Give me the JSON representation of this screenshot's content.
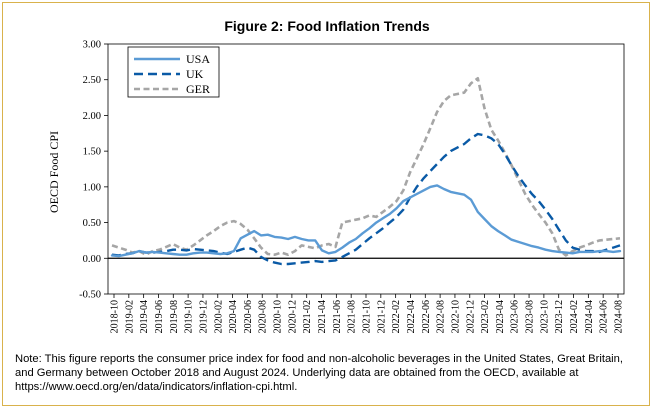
{
  "chart_data": {
    "type": "line",
    "title": "Figure 2: Food Inflation Trends",
    "ylabel": "OECD Food CPI",
    "xlabel": "",
    "ylim": [
      -0.5,
      3.0
    ],
    "yticks": [
      "3.00",
      "2.50",
      "2.00",
      "1.50",
      "1.00",
      "0.50",
      "0.00",
      "-0.50"
    ],
    "ytick_values": [
      3.0,
      2.5,
      2.0,
      1.5,
      1.0,
      0.5,
      0.0,
      -0.5
    ],
    "x_tick_labels": [
      "2018-10",
      "2019-02",
      "2019-04",
      "2019-06",
      "2019-08",
      "2019-10",
      "2019-12",
      "2020-02",
      "2020-04",
      "2020-06",
      "2020-08",
      "2020-10",
      "2020-12",
      "2021-02",
      "2021-04",
      "2021-06",
      "2021-08",
      "2021-10",
      "2021-12",
      "2022-02",
      "2022-04",
      "2022-06",
      "2022-08",
      "2022-10",
      "2022-12",
      "2023-02",
      "2023-04",
      "2023-06",
      "2023-08",
      "2023-10",
      "2023-12",
      "2024-02",
      "2024-04",
      "2024-06",
      "2024-08"
    ],
    "grid": false,
    "legend_position": "top-left",
    "series": [
      {
        "name": "USA",
        "color": "#5b9bd5",
        "style": "solid",
        "values": [
          0.04,
          0.03,
          0.05,
          0.07,
          0.1,
          0.08,
          0.09,
          0.08,
          0.07,
          0.06,
          0.05,
          0.05,
          0.07,
          0.08,
          0.08,
          0.07,
          0.06,
          0.07,
          0.1,
          0.28,
          0.33,
          0.38,
          0.32,
          0.33,
          0.3,
          0.29,
          0.27,
          0.3,
          0.27,
          0.25,
          0.25,
          0.11,
          0.07,
          0.09,
          0.15,
          0.22,
          0.27,
          0.35,
          0.42,
          0.5,
          0.56,
          0.62,
          0.7,
          0.8,
          0.85,
          0.9,
          0.95,
          1.0,
          1.02,
          0.97,
          0.93,
          0.91,
          0.89,
          0.82,
          0.65,
          0.55,
          0.45,
          0.38,
          0.32,
          0.26,
          0.23,
          0.2,
          0.17,
          0.15,
          0.12,
          0.1,
          0.09,
          0.08,
          0.07,
          0.09,
          0.09,
          0.09,
          0.1,
          0.1,
          0.09,
          0.1
        ]
      },
      {
        "name": "UK",
        "color": "#0a5aa6",
        "style": "dashed",
        "values": [
          0.05,
          0.04,
          0.06,
          0.07,
          0.1,
          0.08,
          0.08,
          0.09,
          0.1,
          0.12,
          0.12,
          0.11,
          0.13,
          0.12,
          0.11,
          0.1,
          0.08,
          0.06,
          0.09,
          0.12,
          0.15,
          0.12,
          0.02,
          -0.03,
          -0.06,
          -0.08,
          -0.08,
          -0.07,
          -0.06,
          -0.05,
          -0.04,
          -0.05,
          -0.04,
          -0.03,
          0.02,
          0.07,
          0.12,
          0.2,
          0.28,
          0.35,
          0.42,
          0.5,
          0.58,
          0.68,
          0.85,
          1.0,
          1.12,
          1.22,
          1.32,
          1.42,
          1.5,
          1.55,
          1.6,
          1.68,
          1.74,
          1.72,
          1.68,
          1.6,
          1.46,
          1.3,
          1.15,
          1.02,
          0.9,
          0.8,
          0.68,
          0.55,
          0.4,
          0.25,
          0.15,
          0.12,
          0.1,
          0.1,
          0.09,
          0.12,
          0.15,
          0.18
        ]
      },
      {
        "name": "GER",
        "color": "#a6a6a6",
        "style": "dashed",
        "values": [
          0.18,
          0.15,
          0.12,
          0.08,
          0.1,
          0.05,
          0.1,
          0.12,
          0.16,
          0.2,
          0.15,
          0.12,
          0.18,
          0.25,
          0.32,
          0.38,
          0.45,
          0.5,
          0.52,
          0.48,
          0.4,
          0.28,
          0.15,
          0.06,
          0.05,
          0.08,
          0.05,
          0.1,
          0.18,
          0.16,
          0.14,
          0.18,
          0.2,
          0.16,
          0.5,
          0.52,
          0.54,
          0.56,
          0.6,
          0.58,
          0.65,
          0.72,
          0.8,
          0.95,
          1.2,
          1.4,
          1.6,
          1.82,
          2.05,
          2.2,
          2.28,
          2.3,
          2.32,
          2.45,
          2.52,
          2.1,
          1.8,
          1.65,
          1.48,
          1.3,
          1.1,
          0.9,
          0.75,
          0.62,
          0.5,
          0.35,
          0.12,
          0.04,
          0.1,
          0.15,
          0.18,
          0.22,
          0.25,
          0.26,
          0.27,
          0.28
        ]
      }
    ]
  },
  "note": {
    "text": "Note: This figure reports the consumer price index for food and non-alcoholic beverages in the United States, Great Britain, and Germany between October 2018 and August 2024. Underlying data are obtained from the OECD, available at https://www.oecd.org/en/data/indicators/inflation-cpi.html."
  },
  "colors": {
    "frame_border": "#d9b24c",
    "axis": "#000000"
  }
}
